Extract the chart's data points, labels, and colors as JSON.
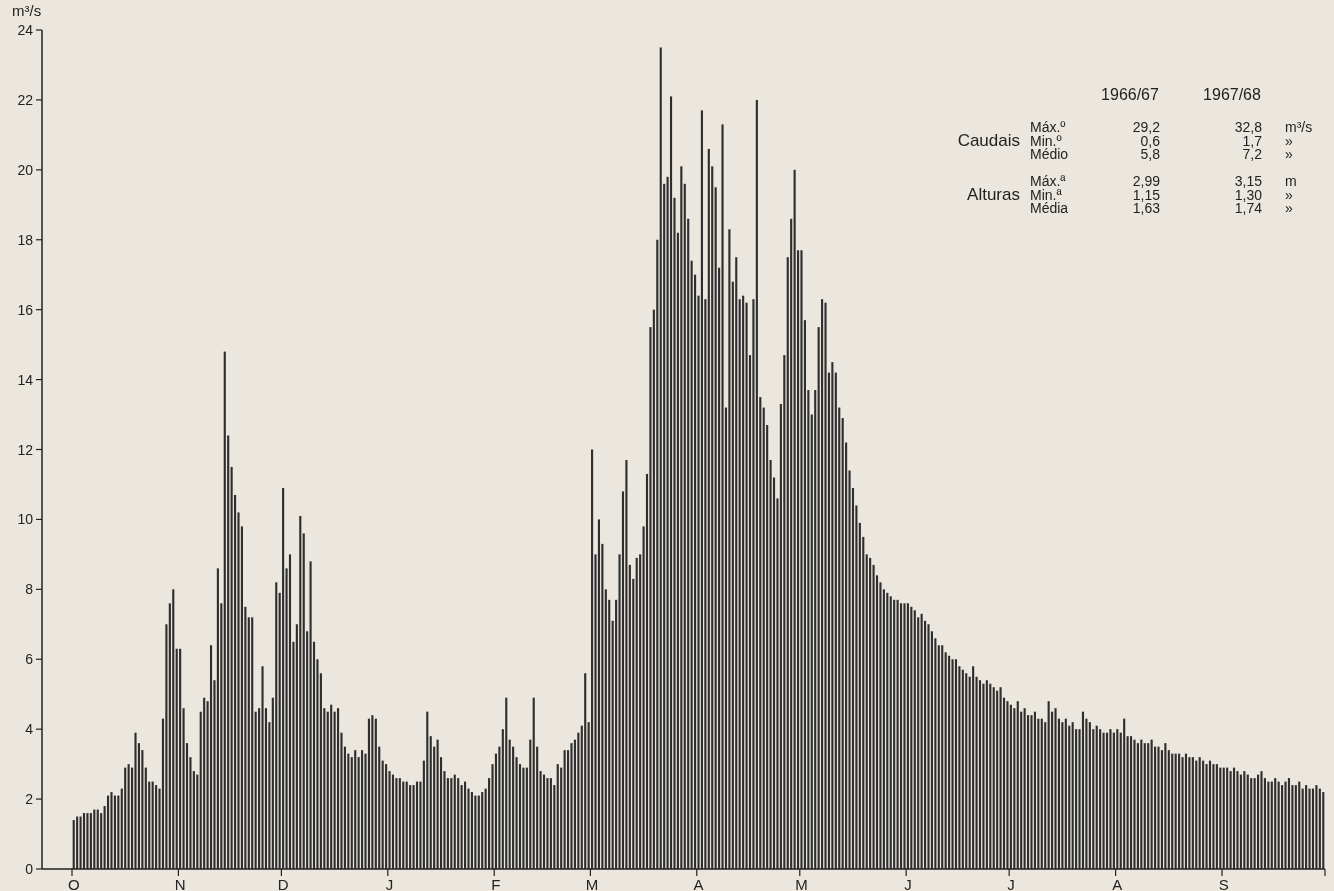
{
  "chart_data": {
    "type": "bar",
    "ylabel": "m³/s",
    "color": "#2e2e2e",
    "ylim": [
      0,
      24
    ],
    "yticks": [
      0,
      2,
      4,
      6,
      8,
      10,
      12,
      14,
      16,
      18,
      20,
      22,
      24
    ],
    "categories": [
      "O",
      null,
      null,
      null,
      null,
      null,
      null,
      null,
      null,
      null,
      null,
      null,
      null,
      null,
      null,
      null,
      null,
      null,
      null,
      null,
      null,
      null,
      null,
      null,
      null,
      null,
      null,
      null,
      null,
      null,
      null,
      "N",
      null,
      null,
      null,
      null,
      null,
      null,
      null,
      null,
      null,
      null,
      null,
      null,
      null,
      null,
      null,
      null,
      null,
      null,
      null,
      null,
      null,
      null,
      null,
      null,
      null,
      null,
      null,
      null,
      null,
      "D",
      null,
      null,
      null,
      null,
      null,
      null,
      null,
      null,
      null,
      null,
      null,
      null,
      null,
      null,
      null,
      null,
      null,
      null,
      null,
      null,
      null,
      null,
      null,
      null,
      null,
      null,
      null,
      null,
      null,
      null,
      "J",
      null,
      null,
      null,
      null,
      null,
      null,
      null,
      null,
      null,
      null,
      null,
      null,
      null,
      null,
      null,
      null,
      null,
      null,
      null,
      null,
      null,
      null,
      null,
      null,
      null,
      null,
      null,
      null,
      null,
      null,
      "F",
      null,
      null,
      null,
      null,
      null,
      null,
      null,
      null,
      null,
      null,
      null,
      null,
      null,
      null,
      null,
      null,
      null,
      null,
      null,
      null,
      null,
      null,
      null,
      null,
      null,
      null,
      null,
      "M",
      null,
      null,
      null,
      null,
      null,
      null,
      null,
      null,
      null,
      null,
      null,
      null,
      null,
      null,
      null,
      null,
      null,
      null,
      null,
      null,
      null,
      null,
      null,
      null,
      null,
      null,
      null,
      null,
      null,
      null,
      "A",
      null,
      null,
      null,
      null,
      null,
      null,
      null,
      null,
      null,
      null,
      null,
      null,
      null,
      null,
      null,
      null,
      null,
      null,
      null,
      null,
      null,
      null,
      null,
      null,
      null,
      null,
      null,
      null,
      null,
      "M",
      null,
      null,
      null,
      null,
      null,
      null,
      null,
      null,
      null,
      null,
      null,
      null,
      null,
      null,
      null,
      null,
      null,
      null,
      null,
      null,
      null,
      null,
      null,
      null,
      null,
      null,
      null,
      null,
      null,
      null,
      "J",
      null,
      null,
      null,
      null,
      null,
      null,
      null,
      null,
      null,
      null,
      null,
      null,
      null,
      null,
      null,
      null,
      null,
      null,
      null,
      null,
      null,
      null,
      null,
      null,
      null,
      null,
      null,
      null,
      null,
      "J",
      null,
      null,
      null,
      null,
      null,
      null,
      null,
      null,
      null,
      null,
      null,
      null,
      null,
      null,
      null,
      null,
      null,
      null,
      null,
      null,
      null,
      null,
      null,
      null,
      null,
      null,
      null,
      null,
      null,
      null,
      "A",
      null,
      null,
      null,
      null,
      null,
      null,
      null,
      null,
      null,
      null,
      null,
      null,
      null,
      null,
      null,
      null,
      null,
      null,
      null,
      null,
      null,
      null,
      null,
      null,
      null,
      null,
      null,
      null,
      null,
      null,
      "S",
      null,
      null,
      null,
      null,
      null,
      null,
      null,
      null,
      null,
      null,
      null,
      null,
      null,
      null,
      null,
      null,
      null,
      null,
      null,
      null,
      null,
      null,
      null,
      null,
      null,
      null,
      null,
      null,
      null
    ],
    "values": [
      1.4,
      1.5,
      1.5,
      1.6,
      1.6,
      1.6,
      1.7,
      1.7,
      1.6,
      1.8,
      2.1,
      2.2,
      2.1,
      2.1,
      2.3,
      2.9,
      3.0,
      2.9,
      3.9,
      3.6,
      3.4,
      2.9,
      2.5,
      2.5,
      2.4,
      2.3,
      4.3,
      7.0,
      7.6,
      8.0,
      6.3,
      6.3,
      4.6,
      3.6,
      3.2,
      2.8,
      2.7,
      4.5,
      4.9,
      4.8,
      6.4,
      5.4,
      8.6,
      7.6,
      14.8,
      12.4,
      11.5,
      10.7,
      10.2,
      9.8,
      7.5,
      7.2,
      7.2,
      4.5,
      4.6,
      5.8,
      4.6,
      4.2,
      4.9,
      8.2,
      7.9,
      10.9,
      8.6,
      9.0,
      6.5,
      7.0,
      10.1,
      9.6,
      6.8,
      8.8,
      6.5,
      6.0,
      5.6,
      4.6,
      4.5,
      4.7,
      4.5,
      4.6,
      3.9,
      3.5,
      3.3,
      3.2,
      3.4,
      3.2,
      3.4,
      3.3,
      4.3,
      4.4,
      4.3,
      3.5,
      3.1,
      3.0,
      2.8,
      2.7,
      2.6,
      2.6,
      2.5,
      2.5,
      2.4,
      2.4,
      2.5,
      2.5,
      3.1,
      4.5,
      3.8,
      3.5,
      3.7,
      3.2,
      2.8,
      2.6,
      2.6,
      2.7,
      2.6,
      2.4,
      2.5,
      2.3,
      2.2,
      2.1,
      2.1,
      2.2,
      2.3,
      2.6,
      3.0,
      3.3,
      3.5,
      4.0,
      4.9,
      3.7,
      3.5,
      3.2,
      3.0,
      2.9,
      2.9,
      3.7,
      4.9,
      3.5,
      2.8,
      2.7,
      2.6,
      2.6,
      2.4,
      3.0,
      2.9,
      3.4,
      3.4,
      3.6,
      3.7,
      3.9,
      4.1,
      5.6,
      4.2,
      12.0,
      9.0,
      10.0,
      9.3,
      8.0,
      7.7,
      7.1,
      7.7,
      9.0,
      10.8,
      11.7,
      8.7,
      8.3,
      8.9,
      9.0,
      9.8,
      11.3,
      15.5,
      16.0,
      18.0,
      23.5,
      19.6,
      19.8,
      22.1,
      19.2,
      18.2,
      20.1,
      19.6,
      18.6,
      17.4,
      17.0,
      16.4,
      21.7,
      16.3,
      20.6,
      20.1,
      19.5,
      17.2,
      21.3,
      13.2,
      18.3,
      16.8,
      17.5,
      16.3,
      16.4,
      16.2,
      14.7,
      16.3,
      22.0,
      13.5,
      13.2,
      12.7,
      11.7,
      11.2,
      10.6,
      13.3,
      14.7,
      17.5,
      18.6,
      20.0,
      17.7,
      17.7,
      15.7,
      13.7,
      13.0,
      13.7,
      15.5,
      16.3,
      16.2,
      14.2,
      14.5,
      14.2,
      13.2,
      12.9,
      12.2,
      11.4,
      10.9,
      10.4,
      9.9,
      9.5,
      9.0,
      8.9,
      8.7,
      8.4,
      8.2,
      8.0,
      7.9,
      7.8,
      7.7,
      7.7,
      7.6,
      7.6,
      7.6,
      7.5,
      7.4,
      7.2,
      7.3,
      7.1,
      7.0,
      6.8,
      6.6,
      6.4,
      6.4,
      6.2,
      6.1,
      6.0,
      6.0,
      5.8,
      5.7,
      5.6,
      5.5,
      5.8,
      5.5,
      5.4,
      5.3,
      5.4,
      5.3,
      5.2,
      5.1,
      5.2,
      4.9,
      4.8,
      4.7,
      4.6,
      4.8,
      4.5,
      4.6,
      4.4,
      4.4,
      4.5,
      4.3,
      4.3,
      4.2,
      4.8,
      4.5,
      4.6,
      4.3,
      4.2,
      4.3,
      4.1,
      4.2,
      4.0,
      4.0,
      4.5,
      4.3,
      4.2,
      4.0,
      4.1,
      4.0,
      3.9,
      3.9,
      4.0,
      3.9,
      4.0,
      3.9,
      4.3,
      3.8,
      3.8,
      3.7,
      3.6,
      3.7,
      3.6,
      3.6,
      3.7,
      3.5,
      3.5,
      3.4,
      3.6,
      3.4,
      3.3,
      3.3,
      3.3,
      3.2,
      3.3,
      3.2,
      3.2,
      3.1,
      3.2,
      3.1,
      3.0,
      3.1,
      3.0,
      3.0,
      2.9,
      2.9,
      2.9,
      2.8,
      2.9,
      2.8,
      2.7,
      2.8,
      2.7,
      2.6,
      2.6,
      2.7,
      2.8,
      2.6,
      2.5,
      2.5,
      2.6,
      2.5,
      2.4,
      2.5,
      2.6,
      2.4,
      2.4,
      2.5,
      2.3,
      2.4,
      2.3,
      2.3,
      2.4,
      2.3,
      2.2
    ],
    "annotations": [
      "1966/67",
      "1967/68",
      "Caudais",
      "Máx.º",
      "29,2",
      "32,8",
      "m³/s",
      "Min.º",
      "0,6",
      "1,7",
      "»",
      "Médio",
      "5,8",
      "7,2",
      "»",
      "Alturas",
      "Máx.ª",
      "2,99",
      "3,15",
      "m",
      "Min.ª",
      "1,15",
      "1,30",
      "»",
      "Média",
      "1,63",
      "1,74",
      "»"
    ]
  }
}
